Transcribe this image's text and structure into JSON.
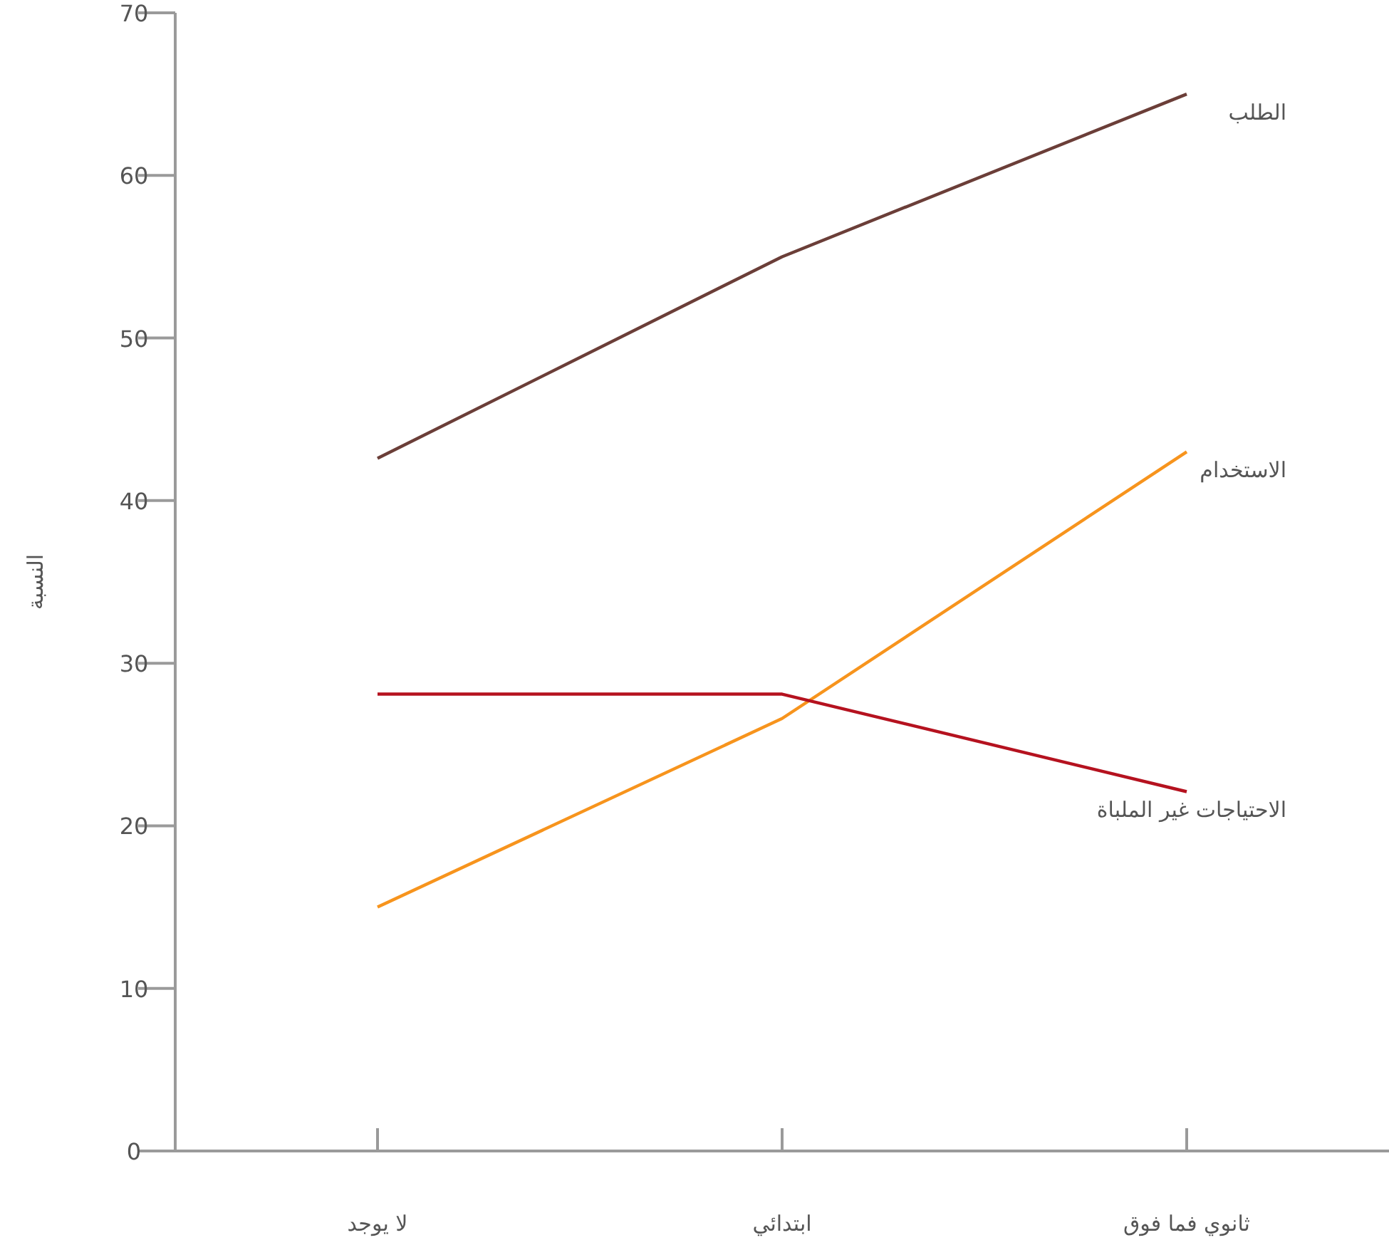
{
  "chart_data": {
    "type": "line",
    "ylabel": "النسبة",
    "categories": [
      "لا يوجد",
      "ابتدائي",
      "ثانوي فما فوق"
    ],
    "series": [
      {
        "name": "الطلب",
        "color": "#6b3e38",
        "values": [
          42.6,
          55,
          65
        ]
      },
      {
        "name": "الاستخدام",
        "color": "#f7941d",
        "values": [
          15,
          26.6,
          43
        ]
      },
      {
        "name": "الاحتياجات غير الملباة",
        "color": "#b5121f",
        "values": [
          28.1,
          28.1,
          22.1
        ]
      }
    ],
    "ylim": [
      0,
      70
    ],
    "yticks": [
      0,
      10,
      20,
      30,
      40,
      50,
      60,
      70
    ],
    "grid": false,
    "marker": "none",
    "line_style": "solid"
  }
}
